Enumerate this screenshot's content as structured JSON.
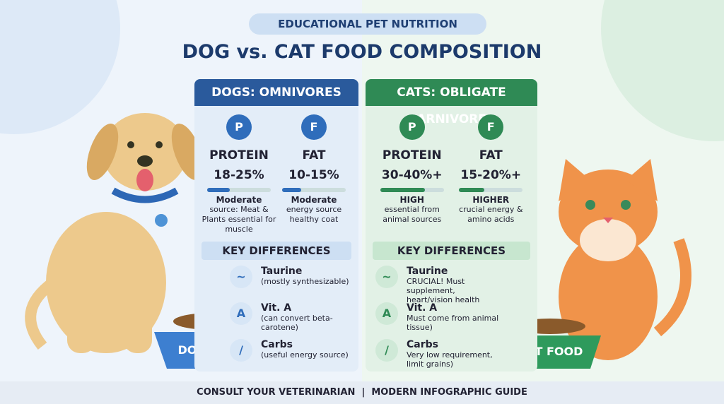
{
  "header": {
    "tag": "EDUCATIONAL PET NUTRITION",
    "title": "DOG vs. CAT FOOD COMPOSITION"
  },
  "panels": [
    {
      "heading": "DOGS: OMNIVORES",
      "nutrients": [
        {
          "label": "PROTEIN",
          "range": "18-25%",
          "level": "Moderate",
          "note": "source: Meat & Plants essential for muscle"
        },
        {
          "label": "FAT",
          "range": "10-15%",
          "level": "Moderate",
          "note": "energy source healthy coat"
        }
      ],
      "differences_heading": "KEY DIFFERENCES",
      "differences": [
        {
          "name": "Taurine",
          "note": "(mostly synthesizable)"
        },
        {
          "name": "Vit. A",
          "note": "(can convert beta-carotene)"
        },
        {
          "name": "Carbs",
          "note": "(useful energy source)"
        }
      ],
      "bowl": "DOG FOOD"
    },
    {
      "heading": "CATS: OBLIGATE CARNIVORES",
      "nutrients": [
        {
          "label": "PROTEIN",
          "range": "30-40%+",
          "level": "HIGH",
          "note": "essential from animal sources"
        },
        {
          "label": "FAT",
          "range": "15-20%+",
          "level": "HIGHER",
          "note": "crucial energy & amino acids"
        }
      ],
      "differences_heading": "KEY DIFFERENCES",
      "differences": [
        {
          "name": "Taurine",
          "note": "CRUCIAL! Must supplement, heart/vision health"
        },
        {
          "name": "Vit. A",
          "note": "Must come from animal tissue)"
        },
        {
          "name": "Carbs",
          "note": "Very low requirement, limit grains)"
        }
      ],
      "bowl": "CAT FOOD"
    }
  ],
  "footer": [
    "CONSULT YOUR VETERINARIAN",
    "MODERN INFOGRAPHIC GUIDE"
  ]
}
